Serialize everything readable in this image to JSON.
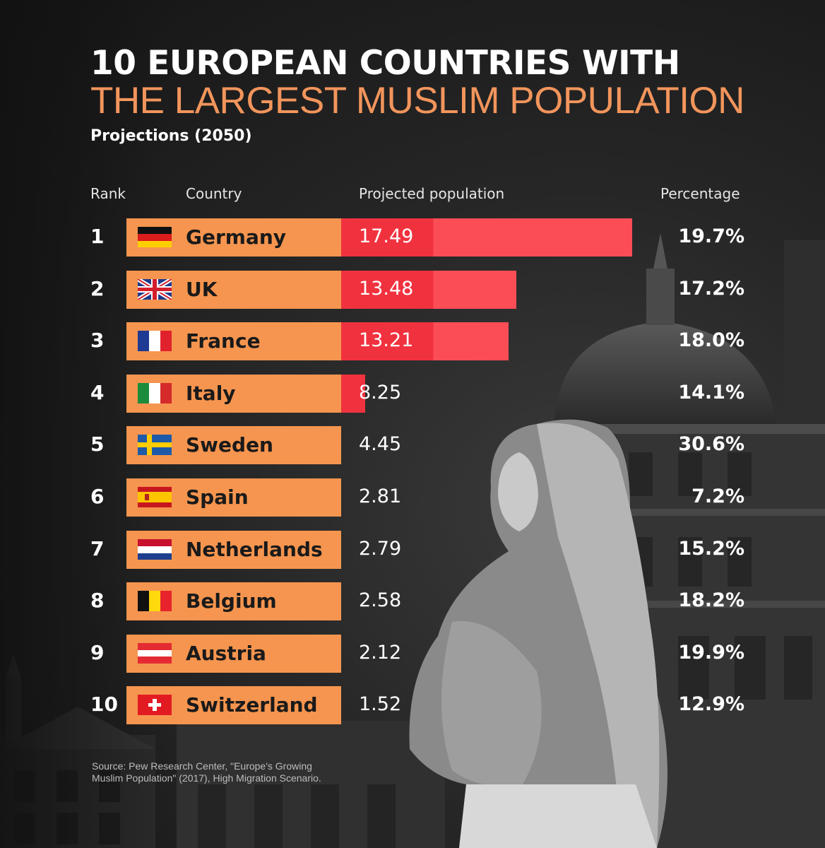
{
  "title_line1": "10 EUROPEAN COUNTRIES WITH",
  "title_line2": "THE LARGEST MUSLIM POPULATION",
  "subtitle": "Projections (2050)",
  "headers": {
    "rank": "Rank",
    "country": "Country",
    "population": "Projected population",
    "percentage": "Percentage"
  },
  "source_line1": "Source: Pew Research Center, \"Europe's Growing",
  "source_line2": "Muslim Population\" (2017), High Migration Scenario.",
  "colors": {
    "orange": "#f6954f",
    "red_dark": "#f0323f",
    "red_light": "#fb4d56",
    "title_accent": "#f2955c"
  },
  "chart_data": {
    "type": "bar",
    "title": "10 EUROPEAN COUNTRIES WITH THE LARGEST MUSLIM POPULATION",
    "subtitle": "Projections (2050)",
    "xlabel": "Projected population",
    "ylabel": "Country",
    "xlim": [
      0,
      17.49
    ],
    "rows": [
      {
        "rank": "1",
        "country": "Germany",
        "flag": "germany-flag-icon",
        "value": 17.49,
        "label": "17.49",
        "percentage": "19.7%"
      },
      {
        "rank": "2",
        "country": "UK",
        "flag": "uk-flag-icon",
        "value": 13.48,
        "label": "13.48",
        "percentage": "17.2%"
      },
      {
        "rank": "3",
        "country": "France",
        "flag": "france-flag-icon",
        "value": 13.21,
        "label": "13.21",
        "percentage": "18.0%"
      },
      {
        "rank": "4",
        "country": "Italy",
        "flag": "italy-flag-icon",
        "value": 8.25,
        "label": "8.25",
        "percentage": "14.1%"
      },
      {
        "rank": "5",
        "country": "Sweden",
        "flag": "sweden-flag-icon",
        "value": 4.45,
        "label": "4.45",
        "percentage": "30.6%"
      },
      {
        "rank": "6",
        "country": "Spain",
        "flag": "spain-flag-icon",
        "value": 2.81,
        "label": "2.81",
        "percentage": "7.2%"
      },
      {
        "rank": "7",
        "country": "Netherlands",
        "flag": "netherlands-flag-icon",
        "value": 2.79,
        "label": "2.79",
        "percentage": "15.2%"
      },
      {
        "rank": "8",
        "country": "Belgium",
        "flag": "belgium-flag-icon",
        "value": 2.58,
        "label": "2.58",
        "percentage": "18.2%"
      },
      {
        "rank": "9",
        "country": "Austria",
        "flag": "austria-flag-icon",
        "value": 2.12,
        "label": "2.12",
        "percentage": "19.9%"
      },
      {
        "rank": "10",
        "country": "Switzerland",
        "flag": "switzerland-flag-icon",
        "value": 1.52,
        "label": "1.52",
        "percentage": "12.9%"
      }
    ]
  }
}
